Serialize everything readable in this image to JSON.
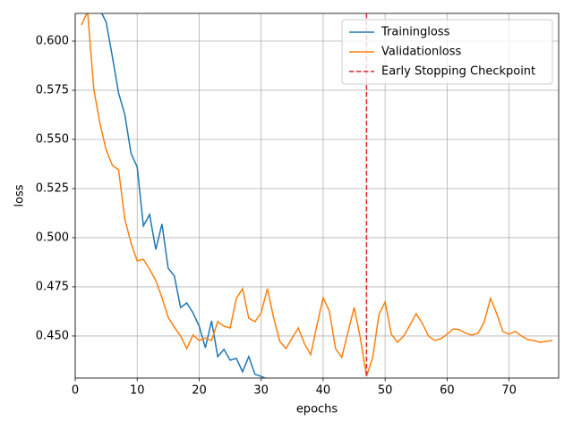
{
  "chart_data": {
    "type": "line",
    "xlabel": "epochs",
    "ylabel": "loss",
    "xlim": [
      0,
      78
    ],
    "ylim": [
      0.4286,
      0.6141
    ],
    "xticks": [
      0,
      10,
      20,
      30,
      40,
      50,
      60,
      70
    ],
    "yticks": [
      {
        "value": 0.45,
        "label": "0.450"
      },
      {
        "value": 0.475,
        "label": "0.475"
      },
      {
        "value": 0.5,
        "label": "0.500"
      },
      {
        "value": 0.525,
        "label": "0.525"
      },
      {
        "value": 0.55,
        "label": "0.550"
      },
      {
        "value": 0.575,
        "label": "0.575"
      },
      {
        "value": 0.6,
        "label": "0.600"
      }
    ],
    "grid": true,
    "legend": "upper right",
    "series": [
      {
        "name": "Trainingloss",
        "color": "#1f77b4",
        "x": [
          4,
          5,
          6,
          7,
          8,
          9,
          10,
          11,
          12,
          13,
          14,
          15,
          16,
          17,
          18,
          19,
          20,
          21,
          22,
          23,
          24,
          25,
          26,
          27,
          28,
          29,
          30,
          31
        ],
        "values": [
          0.616,
          0.6096,
          0.592,
          0.5736,
          0.5627,
          0.543,
          0.536,
          0.506,
          0.5118,
          0.494,
          0.507,
          0.4845,
          0.4805,
          0.4645,
          0.4668,
          0.4618,
          0.455,
          0.444,
          0.4577,
          0.4395,
          0.4432,
          0.4377,
          0.4386,
          0.4318,
          0.4395,
          0.4305,
          0.4295,
          0.428
        ]
      },
      {
        "name": "Validationloss",
        "color": "#ff7f0e",
        "x": [
          1,
          2,
          3,
          4,
          5,
          6,
          7,
          8,
          9,
          10,
          11,
          12,
          13,
          14,
          15,
          16,
          17,
          18,
          19,
          20,
          21,
          22,
          23,
          24,
          25,
          26,
          27,
          28,
          29,
          30,
          31,
          32,
          33,
          34,
          35,
          36,
          37,
          38,
          39,
          40,
          41,
          42,
          43,
          44,
          45,
          46,
          47,
          48,
          49,
          50,
          51,
          52,
          53,
          54,
          55,
          56,
          57,
          58,
          59,
          60,
          61,
          62,
          63,
          64,
          65,
          66,
          67,
          68,
          69,
          70,
          71,
          72,
          73,
          74,
          75,
          76,
          77
        ],
        "values": [
          0.6082,
          0.615,
          0.5755,
          0.558,
          0.5445,
          0.5368,
          0.5345,
          0.5095,
          0.4973,
          0.4882,
          0.489,
          0.484,
          0.4782,
          0.4695,
          0.4595,
          0.4545,
          0.45,
          0.4436,
          0.4505,
          0.4477,
          0.449,
          0.4477,
          0.4573,
          0.455,
          0.4541,
          0.4691,
          0.4741,
          0.459,
          0.4573,
          0.4618,
          0.4741,
          0.4595,
          0.4473,
          0.4436,
          0.449,
          0.4541,
          0.4459,
          0.4405,
          0.4555,
          0.4695,
          0.4627,
          0.4436,
          0.4391,
          0.4518,
          0.4645,
          0.449,
          0.4295,
          0.4391,
          0.4609,
          0.4673,
          0.4509,
          0.4468,
          0.45,
          0.4555,
          0.4614,
          0.4564,
          0.45,
          0.4477,
          0.4486,
          0.4509,
          0.4536,
          0.4532,
          0.4514,
          0.4505,
          0.4514,
          0.4573,
          0.4691,
          0.4614,
          0.4523,
          0.4509,
          0.4523,
          0.45,
          0.4482,
          0.4477,
          0.4468,
          0.4473,
          0.4477
        ]
      }
    ],
    "vlines": [
      {
        "x": 47,
        "name": "Early Stopping Checkpoint",
        "color": "#d62728",
        "style": "dashed"
      }
    ]
  }
}
